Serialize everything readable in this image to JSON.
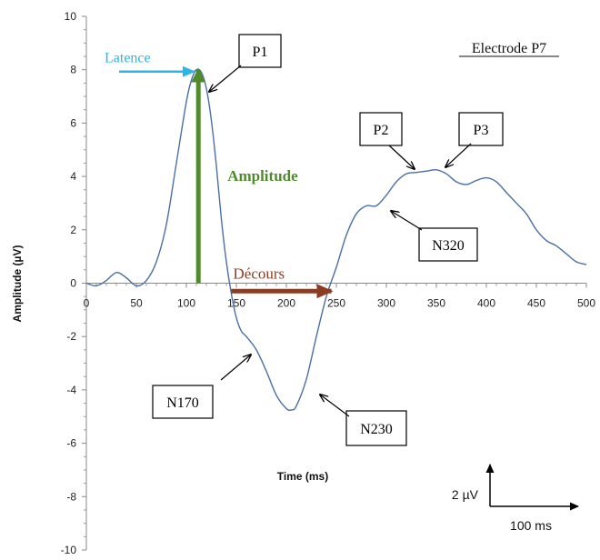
{
  "chart_data": {
    "type": "line",
    "title": "Electrode P7",
    "xlabel": "Time (ms)",
    "ylabel": "Amplitude (µV)",
    "xlim": [
      0,
      500
    ],
    "ylim": [
      -10,
      10
    ],
    "x_ticks": [
      0,
      50,
      100,
      150,
      200,
      250,
      300,
      350,
      400,
      450,
      500
    ],
    "y_ticks": [
      -10,
      -8,
      -6,
      -4,
      -2,
      0,
      2,
      4,
      6,
      8,
      10
    ],
    "x_tick_labels": [
      "0",
      "50",
      "100",
      "150",
      "200",
      "250",
      "300",
      "350",
      "400",
      "450",
      "500"
    ],
    "y_tick_labels": [
      "-10",
      "-8",
      "-6",
      "-4",
      "-2",
      "0",
      "2",
      "4",
      "6",
      "8",
      "10"
    ],
    "series": [
      {
        "color": "#4a6fa5",
        "x": [
          0,
          10,
          20,
          30,
          40,
          50,
          60,
          70,
          80,
          90,
          100,
          105,
          110,
          115,
          120,
          125,
          130,
          135,
          140,
          145,
          150,
          155,
          160,
          170,
          180,
          190,
          200,
          205,
          210,
          220,
          230,
          240,
          250,
          260,
          270,
          280,
          290,
          300,
          310,
          320,
          330,
          340,
          350,
          360,
          370,
          380,
          390,
          400,
          410,
          420,
          430,
          440,
          450,
          460,
          470,
          480,
          490,
          500
        ],
        "y": [
          0,
          -0.1,
          0.1,
          0.4,
          0.2,
          -0.1,
          0.1,
          0.8,
          2.2,
          4.5,
          6.8,
          7.6,
          8.0,
          7.9,
          7.3,
          6.1,
          4.4,
          2.4,
          0.8,
          -0.4,
          -1.3,
          -1.8,
          -2.0,
          -2.5,
          -3.3,
          -4.2,
          -4.7,
          -4.75,
          -4.6,
          -3.6,
          -2.0,
          -0.5,
          0.6,
          1.8,
          2.6,
          2.9,
          2.9,
          3.3,
          3.8,
          4.1,
          4.15,
          4.2,
          4.25,
          4.1,
          3.8,
          3.7,
          3.85,
          3.95,
          3.8,
          3.4,
          3.0,
          2.6,
          2.0,
          1.6,
          1.4,
          1.1,
          0.8,
          0.7
        ]
      }
    ],
    "annotations": [
      {
        "label": "P1",
        "x": 112,
        "y": 8.0
      },
      {
        "label": "P2",
        "x": 325,
        "y": 4.1
      },
      {
        "label": "P3",
        "x": 360,
        "y": 4.25
      },
      {
        "label": "N320",
        "x": 305,
        "y": 2.8
      },
      {
        "label": "N170",
        "x": 165,
        "y": -2.6
      },
      {
        "label": "N230",
        "x": 235,
        "y": -4.2
      }
    ],
    "markers": {
      "latence": {
        "label": "Latence",
        "color": "#27b7ea",
        "at_x": 110,
        "at_y": 8.0
      },
      "amplitude": {
        "label": "Amplitude",
        "color": "#4f8a2c",
        "x": 112,
        "y_from": 0,
        "y_to": 8.0
      },
      "decours": {
        "label": "Décours",
        "color": "#8b3d23",
        "x_from": 145,
        "x_to": 245,
        "y": -0.3
      }
    },
    "scale_bar": {
      "vertical_label": "2 µV",
      "horizontal_label": "100 ms"
    },
    "grid": false
  }
}
